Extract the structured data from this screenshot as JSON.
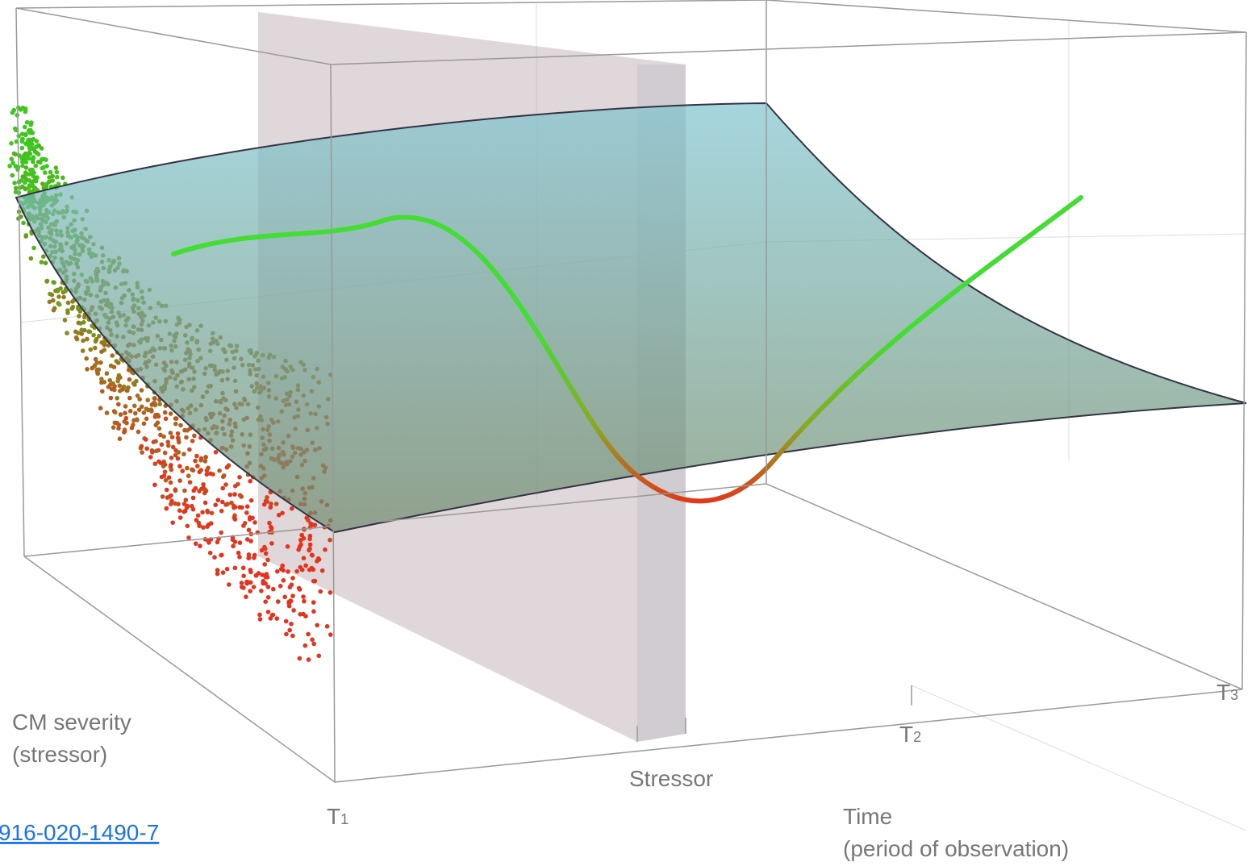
{
  "axis_labels": {
    "severity": [
      "CM severity",
      "(stressor)"
    ],
    "stressor": "Stressor",
    "time": [
      "Time",
      "(period of observation)"
    ]
  },
  "time_points": [
    {
      "base": "T",
      "sub": "1"
    },
    {
      "base": "T",
      "sub": "2"
    },
    {
      "base": "T",
      "sub": "3"
    }
  ],
  "link": "916-020-1490-7"
}
